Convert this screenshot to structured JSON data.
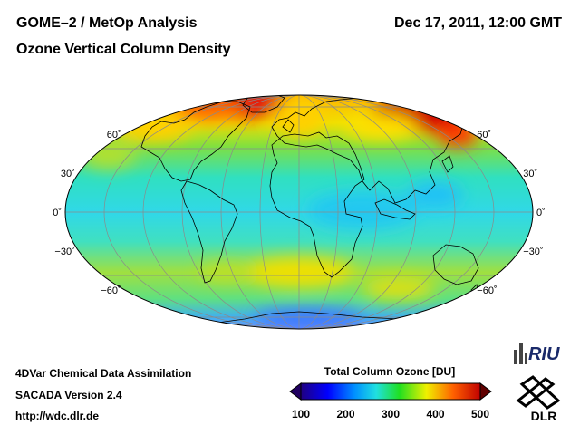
{
  "header": {
    "title_line1": "GOME–2 / MetOp Analysis",
    "title_line2": "Ozone Vertical Column Density",
    "datetime": "Dec 17, 2011, 12:00 GMT"
  },
  "map": {
    "projection": "Mollweide",
    "lat_labels": [
      {
        "text": "60˚",
        "lat": 60,
        "side": "left"
      },
      {
        "text": "60˚",
        "lat": 60,
        "side": "right"
      },
      {
        "text": "30˚",
        "lat": 30,
        "side": "left"
      },
      {
        "text": "30˚",
        "lat": 30,
        "side": "right"
      },
      {
        "text": "0˚",
        "lat": 0,
        "side": "left"
      },
      {
        "text": "0˚",
        "lat": 0,
        "side": "right"
      },
      {
        "text": "−30˚",
        "lat": -30,
        "side": "left"
      },
      {
        "text": "−30˚",
        "lat": -30,
        "side": "right"
      },
      {
        "text": "−60˚",
        "lat": -60,
        "side": "left"
      },
      {
        "text": "−60˚",
        "lat": -60,
        "side": "right"
      }
    ]
  },
  "colorbar": {
    "title": "Total Column Ozone [DU]",
    "min": 100,
    "max": 500,
    "ticks": [
      "100",
      "200",
      "300",
      "400",
      "500"
    ]
  },
  "footer": {
    "line1": "4DVar Chemical Data Assimilation",
    "line2": "SACADA Version 2.4",
    "line3": "http://wdc.dlr.de"
  },
  "logos": {
    "riu": "RIU",
    "dlr": "DLR"
  },
  "colors": {
    "low": "#200080",
    "mid": "#20e0e0",
    "high": "#d00000"
  }
}
